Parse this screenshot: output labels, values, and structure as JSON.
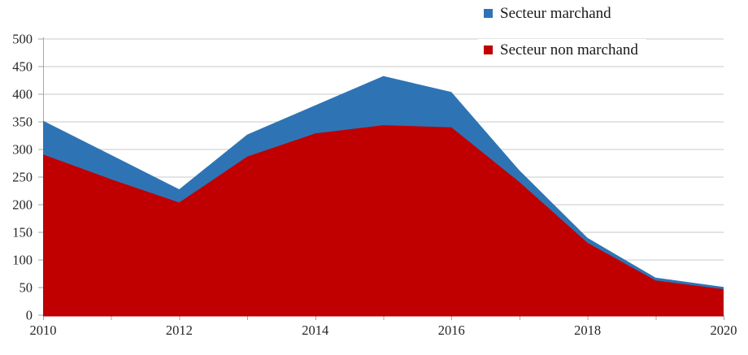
{
  "chart_data": {
    "type": "area",
    "stacked": true,
    "x": [
      2010,
      2011,
      2012,
      2013,
      2014,
      2015,
      2016,
      2017,
      2018,
      2019,
      2020
    ],
    "x_labeled_ticks": [
      2010,
      2012,
      2014,
      2016,
      2018,
      2020
    ],
    "series": [
      {
        "name": "Secteur marchand",
        "color": "#2E74B5",
        "values": [
          61,
          44,
          24,
          40,
          51,
          89,
          64,
          21,
          9,
          5,
          4
        ]
      },
      {
        "name": "Secteur non marchand",
        "color": "#C00000",
        "values": [
          291,
          246,
          204,
          287,
          329,
          344,
          340,
          241,
          131,
          63,
          47
        ]
      }
    ],
    "stacked_totals": [
      352,
      290,
      228,
      327,
      380,
      433,
      404,
      262,
      140,
      68,
      51
    ],
    "ylim": [
      0,
      500
    ],
    "ytick_step": 50,
    "grid": "horizontal",
    "legend_position": "top-right",
    "colors": {
      "grid": "#C9C9C9",
      "axis": "#A6A6A6",
      "tick": "#A6A6A6",
      "label": "#262626"
    }
  },
  "legend": {
    "items": [
      {
        "label": "Secteur marchand",
        "color": "#2E74B5"
      },
      {
        "label": "Secteur non marchand",
        "color": "#C00000"
      }
    ]
  }
}
